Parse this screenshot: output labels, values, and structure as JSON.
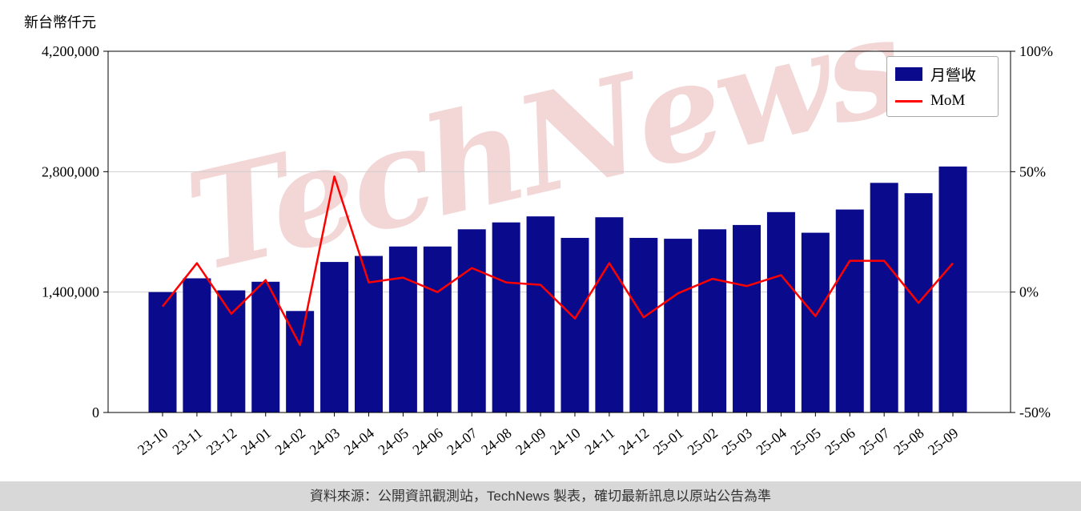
{
  "chart_data": {
    "type": "bar",
    "title": "",
    "watermark": "TechNews",
    "categories": [
      "23-10",
      "23-11",
      "23-12",
      "24-01",
      "24-02",
      "24-03",
      "24-04",
      "24-05",
      "24-06",
      "24-07",
      "24-08",
      "24-09",
      "24-10",
      "24-11",
      "24-12",
      "25-01",
      "25-02",
      "25-03",
      "25-04",
      "25-05",
      "25-06",
      "25-07",
      "25-08",
      "25-09"
    ],
    "series": [
      {
        "name": "月營收",
        "type": "bar",
        "color": "#0a0a8c",
        "axis": "left",
        "values": [
          1400000,
          1560000,
          1420000,
          1520000,
          1180000,
          1750000,
          1820000,
          1930000,
          1930000,
          2130000,
          2210000,
          2280000,
          2030000,
          2270000,
          2030000,
          2020000,
          2130000,
          2180000,
          2330000,
          2090000,
          2360000,
          2670000,
          2550000,
          2860000
        ]
      },
      {
        "name": "MoM",
        "type": "line",
        "color": "#ff0000",
        "axis": "right",
        "values": [
          -6,
          12,
          -9,
          5,
          -22,
          48,
          4,
          6,
          0,
          10,
          4,
          3,
          -11,
          12,
          -10.5,
          -0.5,
          5.5,
          2.5,
          7,
          -10,
          13,
          13,
          -4.5,
          12
        ]
      }
    ],
    "left_axis": {
      "label": "新台幣仟元",
      "min": 0,
      "max": 4200000,
      "tick_values": [
        0,
        1400000,
        2800000,
        4200000
      ],
      "tick_labels": [
        "0",
        "1,400,000",
        "2,800,000",
        "4,200,000"
      ]
    },
    "right_axis": {
      "label": "",
      "min": -50,
      "max": 100,
      "tick_values": [
        -50,
        0,
        50,
        100
      ],
      "tick_labels": [
        "-50%",
        "0%",
        "50%",
        "100%"
      ]
    },
    "legend_position": "top-right",
    "grid": true
  },
  "footer": {
    "text": "資料來源：公開資訊觀測站，TechNews 製表，確切最新訊息以原站公告為準"
  }
}
